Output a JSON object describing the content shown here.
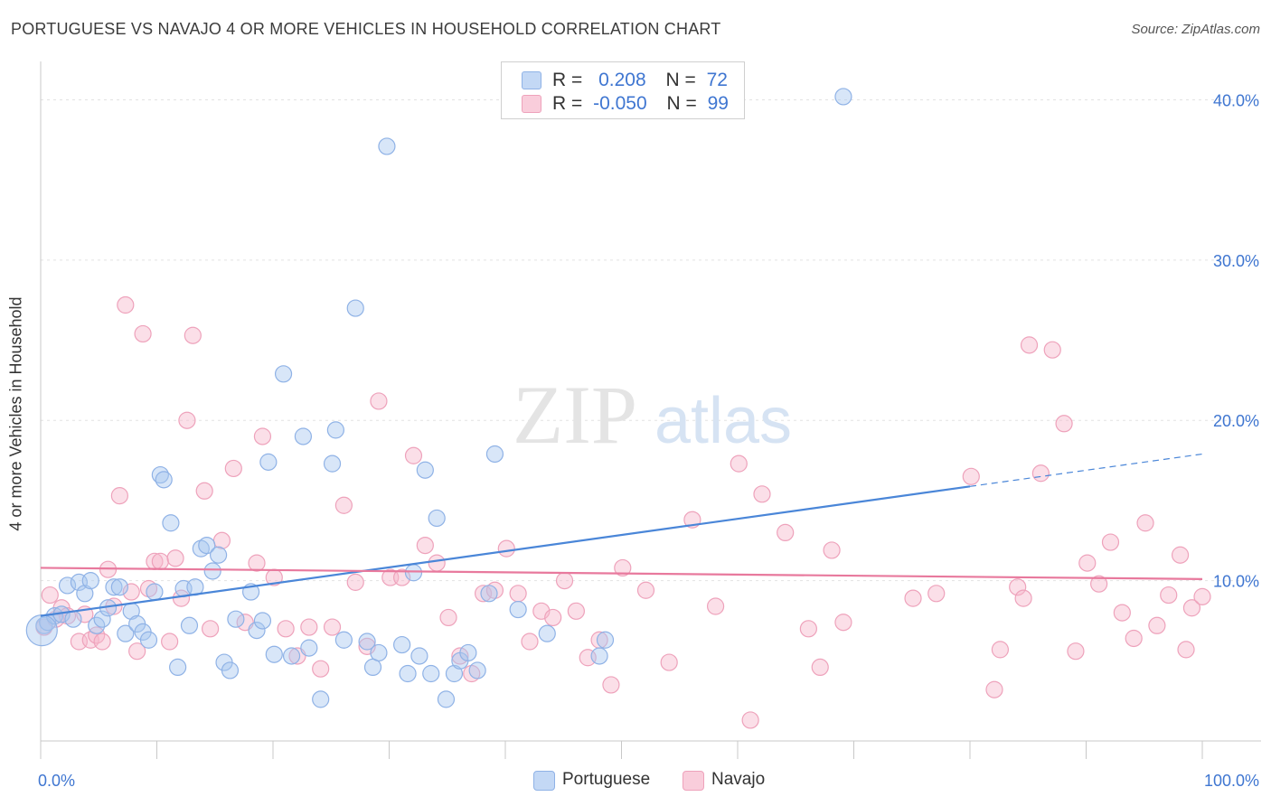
{
  "title": "PORTUGUESE VS NAVAJO 4 OR MORE VEHICLES IN HOUSEHOLD CORRELATION CHART",
  "source": "Source: ZipAtlas.com",
  "watermark": {
    "zip": "ZIP",
    "atlas": "atlas"
  },
  "legend": {
    "rows": [
      {
        "r_label": "R =",
        "r_value": "0.208",
        "n_label": "N =",
        "n_value": "72",
        "color": "#a9c7f0"
      },
      {
        "r_label": "R =",
        "r_value": "-0.050",
        "n_label": "N =",
        "n_value": "99",
        "color": "#f6b9cc"
      }
    ]
  },
  "bottom_legend": {
    "portuguese": "Portuguese",
    "navajo": "Navajo"
  },
  "chart_data": {
    "type": "scatter",
    "title": "PORTUGUESE VS NAVAJO 4 OR MORE VEHICLES IN HOUSEHOLD CORRELATION CHART",
    "xlabel": "",
    "ylabel": "4 or more Vehicles in Household",
    "xlim": [
      0,
      100
    ],
    "ylim": [
      0,
      42
    ],
    "x_tick_labels": [
      "0.0%",
      "100.0%"
    ],
    "y_tick_labels": [
      "10.0%",
      "20.0%",
      "30.0%",
      "40.0%"
    ],
    "y_ticks": [
      10,
      20,
      30,
      40
    ],
    "grid": true,
    "legend_position": "top-center",
    "colors": {
      "portuguese": "#4a86d8",
      "navajo": "#e8799d",
      "axis_label": "#3f76d1"
    },
    "series": [
      {
        "name": "Portuguese",
        "trend": {
          "x": [
            0,
            80,
            100
          ],
          "y": [
            7.8,
            15.9,
            17.9
          ],
          "solid_until": 80
        },
        "points": [
          [
            0.3,
            7.2
          ],
          [
            0.6,
            7.4
          ],
          [
            1.2,
            7.8
          ],
          [
            1.8,
            7.9
          ],
          [
            2.3,
            9.7
          ],
          [
            2.8,
            7.6
          ],
          [
            3.3,
            9.9
          ],
          [
            3.8,
            9.2
          ],
          [
            4.3,
            10.0
          ],
          [
            4.8,
            7.2
          ],
          [
            5.3,
            7.6
          ],
          [
            5.8,
            8.3
          ],
          [
            6.3,
            9.6
          ],
          [
            6.8,
            9.6
          ],
          [
            7.3,
            6.7
          ],
          [
            7.8,
            8.1
          ],
          [
            8.3,
            7.3
          ],
          [
            8.8,
            6.8
          ],
          [
            9.3,
            6.3
          ],
          [
            9.8,
            9.3
          ],
          [
            10.3,
            16.6
          ],
          [
            10.6,
            16.3
          ],
          [
            11.2,
            13.6
          ],
          [
            11.8,
            4.6
          ],
          [
            12.3,
            9.5
          ],
          [
            12.8,
            7.2
          ],
          [
            13.3,
            9.6
          ],
          [
            13.8,
            12.0
          ],
          [
            14.3,
            12.2
          ],
          [
            14.8,
            10.6
          ],
          [
            15.3,
            11.6
          ],
          [
            15.8,
            4.9
          ],
          [
            16.3,
            4.4
          ],
          [
            16.8,
            7.6
          ],
          [
            18.1,
            9.3
          ],
          [
            18.6,
            6.9
          ],
          [
            19.1,
            7.5
          ],
          [
            19.6,
            17.4
          ],
          [
            20.1,
            5.4
          ],
          [
            20.9,
            22.9
          ],
          [
            21.6,
            5.3
          ],
          [
            22.6,
            19.0
          ],
          [
            23.1,
            5.8
          ],
          [
            24.1,
            2.6
          ],
          [
            25.1,
            17.3
          ],
          [
            25.4,
            19.4
          ],
          [
            26.1,
            6.3
          ],
          [
            27.1,
            27.0
          ],
          [
            28.1,
            6.2
          ],
          [
            28.6,
            4.6
          ],
          [
            29.1,
            5.5
          ],
          [
            29.8,
            37.1
          ],
          [
            31.1,
            6.0
          ],
          [
            31.6,
            4.2
          ],
          [
            32.1,
            10.5
          ],
          [
            32.6,
            5.3
          ],
          [
            33.1,
            16.9
          ],
          [
            33.6,
            4.2
          ],
          [
            34.1,
            13.9
          ],
          [
            34.9,
            2.6
          ],
          [
            35.6,
            4.2
          ],
          [
            36.1,
            5.0
          ],
          [
            36.8,
            5.5
          ],
          [
            37.6,
            4.4
          ],
          [
            38.6,
            9.2
          ],
          [
            39.1,
            17.9
          ],
          [
            41.1,
            8.2
          ],
          [
            43.6,
            6.7
          ],
          [
            48.1,
            5.3
          ],
          [
            48.6,
            6.3
          ],
          [
            69.1,
            40.2
          ],
          [
            0.1,
            6.9
          ]
        ]
      },
      {
        "name": "Navajo",
        "trend": {
          "x": [
            0,
            100
          ],
          "y": [
            10.8,
            10.1
          ]
        },
        "points": [
          [
            0.3,
            7.1
          ],
          [
            0.8,
            9.1
          ],
          [
            1.3,
            7.6
          ],
          [
            1.8,
            8.3
          ],
          [
            2.3,
            7.8
          ],
          [
            3.3,
            6.2
          ],
          [
            3.8,
            7.9
          ],
          [
            4.3,
            6.3
          ],
          [
            4.8,
            6.6
          ],
          [
            5.3,
            6.2
          ],
          [
            5.8,
            10.7
          ],
          [
            6.3,
            8.4
          ],
          [
            6.8,
            15.3
          ],
          [
            7.3,
            27.2
          ],
          [
            7.8,
            9.3
          ],
          [
            8.3,
            5.6
          ],
          [
            8.8,
            25.4
          ],
          [
            9.3,
            9.5
          ],
          [
            9.8,
            11.2
          ],
          [
            10.3,
            11.2
          ],
          [
            11.1,
            6.2
          ],
          [
            11.6,
            11.4
          ],
          [
            12.1,
            8.9
          ],
          [
            12.6,
            20.0
          ],
          [
            13.1,
            25.3
          ],
          [
            14.1,
            15.6
          ],
          [
            14.6,
            7.0
          ],
          [
            15.6,
            12.5
          ],
          [
            16.6,
            17.0
          ],
          [
            17.6,
            7.4
          ],
          [
            18.6,
            11.1
          ],
          [
            19.1,
            19.0
          ],
          [
            20.1,
            10.2
          ],
          [
            21.1,
            7.0
          ],
          [
            22.1,
            5.3
          ],
          [
            23.1,
            7.1
          ],
          [
            24.1,
            4.5
          ],
          [
            25.1,
            7.1
          ],
          [
            26.1,
            14.7
          ],
          [
            27.1,
            9.9
          ],
          [
            28.1,
            5.9
          ],
          [
            29.1,
            21.2
          ],
          [
            30.1,
            10.2
          ],
          [
            31.1,
            10.2
          ],
          [
            32.1,
            17.8
          ],
          [
            33.1,
            12.2
          ],
          [
            34.1,
            11.1
          ],
          [
            35.1,
            7.7
          ],
          [
            36.1,
            5.3
          ],
          [
            37.1,
            4.2
          ],
          [
            38.1,
            9.2
          ],
          [
            39.1,
            9.4
          ],
          [
            40.1,
            12.0
          ],
          [
            41.1,
            9.2
          ],
          [
            42.1,
            6.2
          ],
          [
            43.1,
            8.1
          ],
          [
            44.1,
            7.7
          ],
          [
            45.1,
            10.0
          ],
          [
            46.1,
            8.1
          ],
          [
            47.1,
            5.2
          ],
          [
            48.1,
            6.3
          ],
          [
            49.1,
            3.5
          ],
          [
            50.1,
            10.8
          ],
          [
            52.1,
            9.4
          ],
          [
            54.1,
            4.9
          ],
          [
            56.1,
            13.8
          ],
          [
            58.1,
            8.4
          ],
          [
            60.1,
            17.3
          ],
          [
            61.1,
            1.3
          ],
          [
            62.1,
            15.4
          ],
          [
            64.1,
            13.0
          ],
          [
            66.1,
            7.0
          ],
          [
            67.1,
            4.6
          ],
          [
            68.1,
            11.9
          ],
          [
            69.1,
            7.4
          ],
          [
            75.1,
            8.9
          ],
          [
            77.1,
            9.2
          ],
          [
            80.1,
            16.5
          ],
          [
            82.1,
            3.2
          ],
          [
            82.6,
            5.7
          ],
          [
            84.1,
            9.6
          ],
          [
            84.6,
            8.9
          ],
          [
            85.1,
            24.7
          ],
          [
            86.1,
            16.7
          ],
          [
            87.1,
            24.4
          ],
          [
            88.1,
            19.8
          ],
          [
            89.1,
            5.6
          ],
          [
            90.1,
            11.1
          ],
          [
            91.1,
            9.8
          ],
          [
            92.1,
            12.4
          ],
          [
            93.1,
            8.0
          ],
          [
            94.1,
            6.4
          ],
          [
            95.1,
            13.6
          ],
          [
            96.1,
            7.2
          ],
          [
            97.1,
            9.1
          ],
          [
            98.1,
            11.6
          ],
          [
            98.6,
            5.7
          ],
          [
            99.1,
            8.3
          ],
          [
            100.0,
            9.0
          ]
        ]
      }
    ]
  }
}
